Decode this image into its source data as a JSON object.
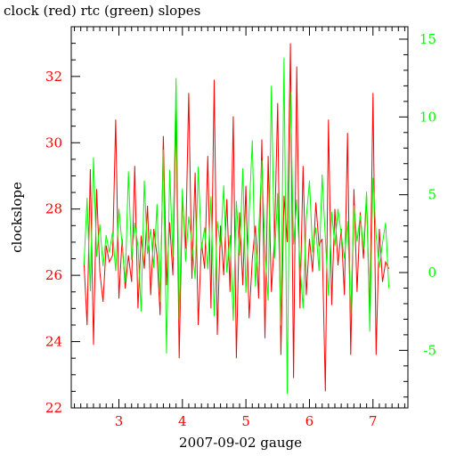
{
  "chart_data": {
    "type": "line",
    "title": "clock (red) rtc (green) slopes",
    "xlabel": "2007-09-02 gauge",
    "ylabel_left": "clockslope",
    "ylabel_right": "",
    "xlim": [
      2.25,
      7.55
    ],
    "ylim_left": [
      22,
      33.5
    ],
    "ylim_right": [
      -8.7,
      15.8
    ],
    "x_ticks": [
      "3",
      "4",
      "5",
      "6",
      "7"
    ],
    "y_left_ticks": [
      "22",
      "24",
      "26",
      "28",
      "30",
      "32"
    ],
    "y_right_ticks": [
      "-5",
      "0",
      "5",
      "10",
      "15"
    ],
    "grid": false,
    "legend": "none",
    "colors": {
      "clock": "#ff0000",
      "rtc": "#00ff00",
      "axes": "#000000"
    },
    "series": [
      {
        "axis": "left",
        "x": [
          2.45,
          2.5,
          2.55,
          2.6,
          2.65,
          2.7,
          2.75,
          2.8,
          2.85,
          2.9,
          2.95,
          3.0,
          3.05,
          3.1,
          3.15,
          3.2,
          3.25,
          3.3,
          3.35,
          3.4,
          3.45,
          3.5,
          3.55,
          3.6,
          3.65,
          3.7,
          3.75,
          3.8,
          3.85,
          3.9,
          3.95,
          4.0,
          4.05,
          4.1,
          4.15,
          4.2,
          4.25,
          4.3,
          4.35,
          4.4,
          4.45,
          4.5,
          4.55,
          4.6,
          4.65,
          4.7,
          4.75,
          4.8,
          4.85,
          4.9,
          4.95,
          5.0,
          5.05,
          5.1,
          5.15,
          5.2,
          5.25,
          5.3,
          5.35,
          5.4,
          5.45,
          5.5,
          5.55,
          5.6,
          5.65,
          5.7,
          5.75,
          5.8,
          5.85,
          5.9,
          5.95,
          6.0,
          6.05,
          6.1,
          6.15,
          6.2,
          6.25,
          6.3,
          6.35,
          6.4,
          6.45,
          6.5,
          6.55,
          6.6,
          6.65,
          6.7,
          6.75,
          6.8,
          6.85,
          6.9,
          6.95,
          7.0,
          7.05,
          7.1,
          7.15,
          7.2,
          7.25
        ],
        "values": [
          26.4,
          24.5,
          29.2,
          23.9,
          28.6,
          26.1,
          25.2,
          26.9,
          26.4,
          26.6,
          30.7,
          25.3,
          27.1,
          25.6,
          26.6,
          25.8,
          29.3,
          25.0,
          27.2,
          26.2,
          28.1,
          25.4,
          27.4,
          26.6,
          24.8,
          30.2,
          25.7,
          27.6,
          26.0,
          31.0,
          23.5,
          28.4,
          26.8,
          31.5,
          25.9,
          29.1,
          24.5,
          27.0,
          26.2,
          29.6,
          25.0,
          31.9,
          24.2,
          27.5,
          26.0,
          28.3,
          25.5,
          30.8,
          23.5,
          27.9,
          25.7,
          28.7,
          24.7,
          26.5,
          27.5,
          25.3,
          30.1,
          24.1,
          29.6,
          25.5,
          27.1,
          31.2,
          23.6,
          28.4,
          27.0,
          33.0,
          22.9,
          32.3,
          25.0,
          29.3,
          25.4,
          27.1,
          26.1,
          28.2,
          26.9,
          27.1,
          22.5,
          30.7,
          25.1,
          28.0,
          26.3,
          27.4,
          25.4,
          30.3,
          23.6,
          28.6,
          25.5,
          27.9,
          26.5,
          28.4,
          24.7,
          31.5,
          23.6,
          27.4,
          25.8,
          26.4,
          26.2
        ]
      },
      {
        "axis": "right",
        "x": [
          2.45,
          2.5,
          2.55,
          2.6,
          2.65,
          2.7,
          2.75,
          2.8,
          2.85,
          2.9,
          2.95,
          3.0,
          3.05,
          3.1,
          3.15,
          3.2,
          3.25,
          3.3,
          3.35,
          3.4,
          3.45,
          3.5,
          3.55,
          3.6,
          3.65,
          3.7,
          3.75,
          3.8,
          3.85,
          3.9,
          3.95,
          4.0,
          4.05,
          4.1,
          4.15,
          4.2,
          4.25,
          4.3,
          4.35,
          4.4,
          4.45,
          4.5,
          4.55,
          4.6,
          4.65,
          4.7,
          4.75,
          4.8,
          4.85,
          4.9,
          4.95,
          5.0,
          5.05,
          5.1,
          5.15,
          5.2,
          5.25,
          5.3,
          5.35,
          5.4,
          5.45,
          5.5,
          5.55,
          5.6,
          5.65,
          5.7,
          5.75,
          5.8,
          5.85,
          5.9,
          5.95,
          6.0,
          6.05,
          6.1,
          6.15,
          6.2,
          6.25,
          6.3,
          6.35,
          6.4,
          6.45,
          6.5,
          6.55,
          6.6,
          6.65,
          6.7,
          6.75,
          6.8,
          6.85,
          6.9,
          6.95,
          7.0,
          7.05,
          7.1,
          7.15,
          7.2,
          7.25
        ],
        "values": [
          0.5,
          4.8,
          -1.2,
          7.4,
          1.0,
          3.1,
          0.4,
          2.4,
          1.3,
          2.6,
          0.1,
          4.1,
          1.8,
          -0.6,
          6.5,
          0.8,
          3.2,
          1.7,
          -2.5,
          5.9,
          1.2,
          2.8,
          0.3,
          4.4,
          -1.9,
          7.9,
          -5.2,
          6.6,
          1.0,
          12.5,
          -3.0,
          5.4,
          0.7,
          3.6,
          1.9,
          -0.4,
          6.8,
          1.5,
          2.9,
          0.2,
          4.9,
          -2.8,
          3.3,
          1.6,
          5.6,
          0.0,
          2.4,
          -3.1,
          4.6,
          1.1,
          6.7,
          -1.3,
          3.8,
          8.5,
          -0.9,
          2.6,
          7.2,
          1.4,
          -1.8,
          12.0,
          0.9,
          5.1,
          -3.4,
          13.8,
          -7.8,
          11.6,
          1.8,
          4.7,
          0.6,
          -2.3,
          3.5,
          5.9,
          1.3,
          2.9,
          0.1,
          6.3,
          2.2,
          -1.5,
          3.9,
          1.7,
          4.1,
          2.5,
          0.9,
          3.3,
          -2.6,
          4.3,
          2.0,
          3.7,
          1.5,
          5.2,
          -3.8,
          6.1,
          2.4,
          0.3,
          1.9,
          3.2,
          -1.0
        ]
      }
    ]
  }
}
